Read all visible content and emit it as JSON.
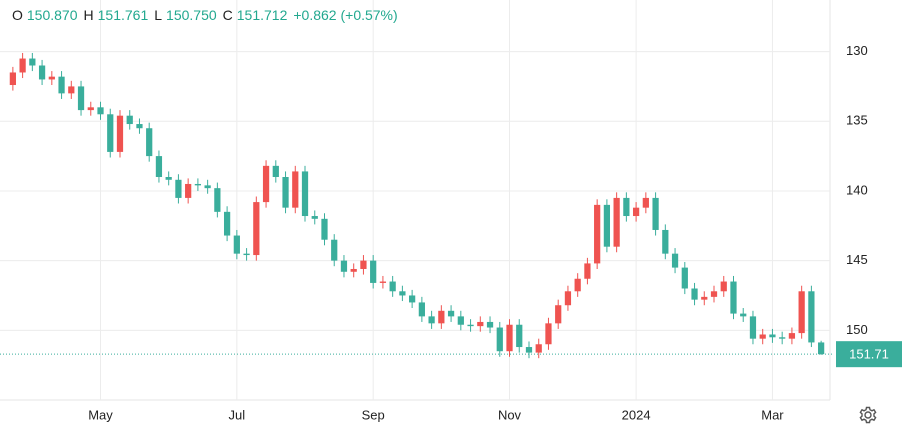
{
  "chart_data": {
    "type": "candlestick",
    "header": [
      {
        "key": "O",
        "value": "150.870"
      },
      {
        "key": "H",
        "value": "151.761"
      },
      {
        "key": "L",
        "value": "150.750"
      },
      {
        "key": "C",
        "value": "151.712"
      }
    ],
    "change": "+0.862 (+0.57%)",
    "categories": [
      null,
      null,
      null,
      null,
      null,
      null,
      null,
      null,
      null,
      "May",
      null,
      null,
      null,
      null,
      null,
      null,
      null,
      null,
      null,
      null,
      null,
      null,
      null,
      "Jul",
      null,
      null,
      null,
      null,
      null,
      null,
      null,
      null,
      null,
      null,
      null,
      null,
      null,
      "Sep",
      null,
      null,
      null,
      null,
      null,
      null,
      null,
      null,
      null,
      null,
      null,
      null,
      null,
      "Nov",
      null,
      null,
      null,
      null,
      null,
      null,
      null,
      null,
      null,
      null,
      null,
      null,
      "2024",
      null,
      null,
      null,
      null,
      null,
      null,
      null,
      null,
      null,
      null,
      null,
      null,
      null,
      "Mar",
      null,
      null,
      null,
      null,
      null
    ],
    "open": [
      132.4,
      131.5,
      130.5,
      131.0,
      132.0,
      131.8,
      133.0,
      132.5,
      134.2,
      134.0,
      134.5,
      137.2,
      134.6,
      135.2,
      135.5,
      137.5,
      139.0,
      139.2,
      140.5,
      139.5,
      139.6,
      139.8,
      141.5,
      143.2,
      144.5,
      144.6,
      140.8,
      138.2,
      139.0,
      141.2,
      138.6,
      141.8,
      142.0,
      143.5,
      145.0,
      145.8,
      145.6,
      145.0,
      146.6,
      146.5,
      147.2,
      147.5,
      148.0,
      149.0,
      149.5,
      148.6,
      149.0,
      149.6,
      149.7,
      149.4,
      149.8,
      151.5,
      149.6,
      151.2,
      151.6,
      151.0,
      149.5,
      148.2,
      147.2,
      146.3,
      145.2,
      141.0,
      144.0,
      140.5,
      141.8,
      141.2,
      140.5,
      142.8,
      144.5,
      145.5,
      147.0,
      147.8,
      147.6,
      147.2,
      146.5,
      148.8,
      149.0,
      150.6,
      150.3,
      150.5,
      150.6,
      150.2,
      147.2,
      150.87
    ],
    "close": [
      131.5,
      130.5,
      131.0,
      132.0,
      131.8,
      133.0,
      132.5,
      134.2,
      134.0,
      134.5,
      137.2,
      134.6,
      135.2,
      135.5,
      137.5,
      139.0,
      139.2,
      140.5,
      139.5,
      139.6,
      139.8,
      141.5,
      143.2,
      144.5,
      144.6,
      140.8,
      138.2,
      139.0,
      141.2,
      138.6,
      141.8,
      142.0,
      143.5,
      145.0,
      145.8,
      145.6,
      145.0,
      146.6,
      146.5,
      147.2,
      147.5,
      148.0,
      149.0,
      149.5,
      148.6,
      149.0,
      149.6,
      149.7,
      149.4,
      149.8,
      151.5,
      149.6,
      151.2,
      151.6,
      151.0,
      149.5,
      148.2,
      147.2,
      146.3,
      145.2,
      141.0,
      144.0,
      140.5,
      141.8,
      141.2,
      140.5,
      142.8,
      144.5,
      145.5,
      147.0,
      147.8,
      147.6,
      147.2,
      146.5,
      148.8,
      149.0,
      150.6,
      150.3,
      150.5,
      150.6,
      150.2,
      147.2,
      150.87,
      151.712
    ],
    "high": [
      132.8,
      131.9,
      131.4,
      132.4,
      132.4,
      133.4,
      133.4,
      134.6,
      134.6,
      134.9,
      137.6,
      137.6,
      135.6,
      135.9,
      137.9,
      139.4,
      139.6,
      140.9,
      140.9,
      140.0,
      140.2,
      141.9,
      143.6,
      144.9,
      145.0,
      145.0,
      141.2,
      139.4,
      141.6,
      141.6,
      142.2,
      142.4,
      143.9,
      145.4,
      146.2,
      146.2,
      146.0,
      147.0,
      147.0,
      147.6,
      147.9,
      148.4,
      149.4,
      149.9,
      149.9,
      149.4,
      150.0,
      150.1,
      150.1,
      150.2,
      151.9,
      151.9,
      151.6,
      152.0,
      152.0,
      151.4,
      149.9,
      148.6,
      147.6,
      146.7,
      145.6,
      144.4,
      144.4,
      142.2,
      142.2,
      141.6,
      143.2,
      144.9,
      145.9,
      147.4,
      148.2,
      148.2,
      148.0,
      147.6,
      149.2,
      149.4,
      151.0,
      151.0,
      150.9,
      151.0,
      151.0,
      150.6,
      151.2,
      151.761
    ],
    "low": [
      131.1,
      130.1,
      130.1,
      130.6,
      131.4,
      131.4,
      132.1,
      132.1,
      133.6,
      133.6,
      134.1,
      134.2,
      134.2,
      134.8,
      135.1,
      137.1,
      138.6,
      138.8,
      139.1,
      139.1,
      139.2,
      139.4,
      141.1,
      142.8,
      144.1,
      140.4,
      137.8,
      137.8,
      138.6,
      138.2,
      138.2,
      141.4,
      141.6,
      143.1,
      144.6,
      145.2,
      144.6,
      144.6,
      146.1,
      146.1,
      146.8,
      147.1,
      147.6,
      148.6,
      148.2,
      148.2,
      148.6,
      149.2,
      149.0,
      149.0,
      149.4,
      149.2,
      149.2,
      150.8,
      150.6,
      149.1,
      147.8,
      146.8,
      145.9,
      144.8,
      140.6,
      140.6,
      140.1,
      140.1,
      140.8,
      140.1,
      140.1,
      142.4,
      144.1,
      145.1,
      146.6,
      147.2,
      146.8,
      146.1,
      146.1,
      148.4,
      148.6,
      149.9,
      149.9,
      150.1,
      149.8,
      146.8,
      146.8,
      150.75
    ],
    "up_color": "#3aae9c",
    "down_color": "#ef5350",
    "ylim": [
      126.3,
      155
    ],
    "y_reversed": true,
    "yticks": [
      130,
      135,
      140,
      145,
      150
    ],
    "grid": true,
    "last_price": {
      "value": 151.712,
      "label": "151.71"
    }
  }
}
